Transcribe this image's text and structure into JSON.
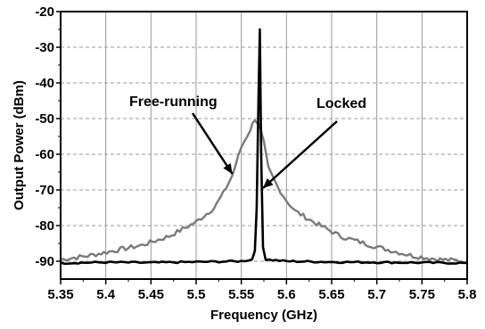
{
  "chart_data": {
    "type": "line",
    "xlabel": "Frequency (GHz)",
    "ylabel": "Output Power (dBm)",
    "xlim": [
      5.35,
      5.8
    ],
    "ylim": [
      -95,
      -20
    ],
    "x_ticks": [
      "5.35",
      "5.4",
      "5.45",
      "5.5",
      "5.55",
      "5.6",
      "5.65",
      "5.7",
      "5.75",
      "5.8"
    ],
    "y_ticks": [
      "-20",
      "-30",
      "-40",
      "-50",
      "-60",
      "-70",
      "-80",
      "-90"
    ],
    "grid": "vertical solid, horizontal dashed",
    "series": [
      {
        "key": "free_running",
        "color": "#7a7a7a",
        "x": [
          5.35,
          5.38,
          5.41,
          5.44,
          5.47,
          5.5,
          5.52,
          5.53,
          5.54,
          5.55,
          5.56,
          5.565,
          5.57,
          5.575,
          5.58,
          5.59,
          5.6,
          5.61,
          5.63,
          5.66,
          5.7,
          5.74,
          5.77,
          5.8
        ],
        "y": [
          -89.5,
          -88.5,
          -87,
          -85.5,
          -83,
          -79,
          -75,
          -71,
          -66,
          -58,
          -53,
          -50,
          -52,
          -57,
          -64,
          -69,
          -73,
          -76,
          -79,
          -83,
          -86,
          -88.5,
          -89.5,
          -90
        ]
      },
      {
        "key": "locked",
        "color": "#000000",
        "x": [
          5.35,
          5.4,
          5.45,
          5.5,
          5.55,
          5.562,
          5.565,
          5.567,
          5.569,
          5.5705,
          5.572,
          5.574,
          5.577,
          5.6,
          5.65,
          5.7,
          5.75,
          5.8
        ],
        "y": [
          -90.5,
          -90.3,
          -90.4,
          -90.2,
          -90,
          -89.5,
          -87,
          -75,
          -45,
          -25,
          -60,
          -86,
          -89.5,
          -90,
          -90.2,
          -90.3,
          -90.4,
          -90.5
        ]
      }
    ],
    "annotations": [
      {
        "text": "Free-running",
        "series": "free_running",
        "arrow_to": [
          5.542,
          -66
        ]
      },
      {
        "text": "Locked",
        "series": "locked",
        "arrow_to": [
          5.572,
          -69
        ]
      }
    ]
  }
}
